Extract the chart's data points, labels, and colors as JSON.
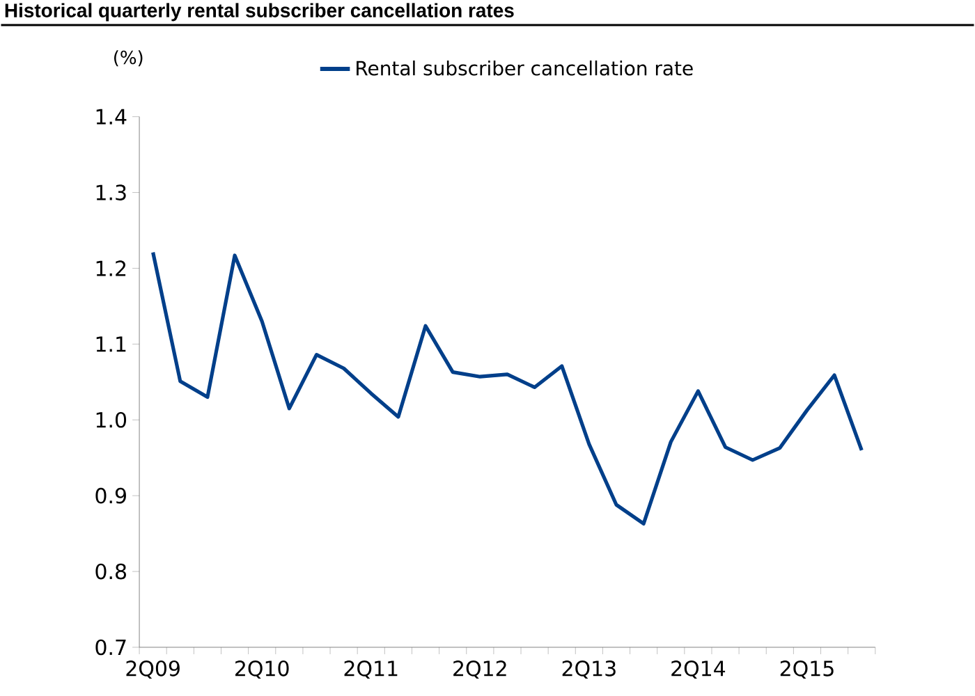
{
  "chart_data": {
    "type": "line",
    "title": "Historical quarterly rental subscriber cancellation rates",
    "ylabel": "(%)",
    "categories": [
      "2Q09",
      null,
      null,
      null,
      "2Q10",
      null,
      null,
      null,
      "2Q11",
      null,
      null,
      null,
      "2Q12",
      null,
      null,
      null,
      "2Q13",
      null,
      null,
      null,
      "2Q14",
      null,
      null,
      null,
      "2Q15",
      null,
      null
    ],
    "series": [
      {
        "name": "Rental subscriber cancellation rate",
        "color": "#003f8a",
        "values": [
          1.221,
          1.051,
          1.03,
          1.217,
          1.13,
          1.015,
          1.086,
          1.068,
          1.035,
          1.004,
          1.124,
          1.063,
          1.057,
          1.06,
          1.043,
          1.071,
          0.968,
          0.888,
          0.863,
          0.971,
          1.038,
          0.964,
          0.947,
          0.963,
          1.013,
          1.059,
          0.96
        ]
      }
    ],
    "ylim": [
      0.7,
      1.4
    ],
    "yticks": [
      {
        "value": 0.7,
        "label": "0.7"
      },
      {
        "value": 0.8,
        "label": "0.8"
      },
      {
        "value": 0.9,
        "label": "0.9"
      },
      {
        "value": 1.0,
        "label": "1.0"
      },
      {
        "value": 1.1,
        "label": "1.1"
      },
      {
        "value": 1.2,
        "label": "1.2"
      },
      {
        "value": 1.3,
        "label": "1.3"
      },
      {
        "value": 1.4,
        "label": "1.4"
      }
    ],
    "grid": false,
    "legend": "top",
    "marker": "none",
    "line_style": "solid"
  }
}
